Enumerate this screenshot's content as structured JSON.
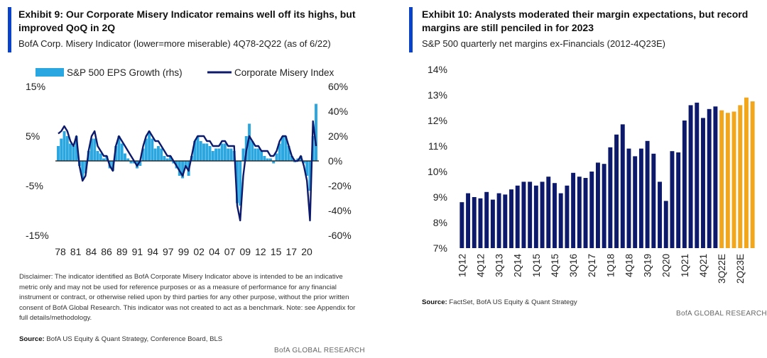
{
  "brand": {
    "name": "BofA GLOBAL RESEARCH",
    "accent": "#0a42c9",
    "navy": "#0d1a6b",
    "light_blue": "#2aa6e0",
    "gold": "#f2a61c"
  },
  "left": {
    "title": "Exhibit 9: Our Corporate Misery Indicator remains well off its highs, but improved QoQ in 2Q",
    "subtitle": "BofA Corp. Misery Indicator (lower=more miserable) 4Q78-2Q22 (as of 6/22)",
    "disclaimer": "Disclaimer: The indicator identified as BofA Corporate Misery Indicator above is intended to be an indicative metric only and may not be used for reference purposes or as a measure of performance for any financial instrument or contract, or otherwise relied upon by third parties for any other purpose, without the prior written consent of BofA Global Research. This indicator was not created to act as a benchmark. Note: see Appendix for full details/methodology.",
    "source_label": "Source:",
    "source_text": "BofA US Equity & Quant Strategy, Conference Board, BLS",
    "credit": "BofA GLOBAL RESEARCH"
  },
  "right": {
    "title": "Exhibit 10: Analysts moderated their margin expectations, but record margins are still penciled in for 2023",
    "subtitle": "S&P 500 quarterly net margins ex-Financials (2012-4Q23E)",
    "source_label": "Source:",
    "source_text": "FactSet, BofA US Equity & Quant Strategy",
    "credit": "BofA GLOBAL RESEARCH"
  },
  "chart_data": [
    {
      "type": "line",
      "title": "Exhibit 9: Our Corporate Misery Indicator remains well off its highs, but improved QoQ in 2Q",
      "legend": [
        "S&P 500 EPS Growth (rhs)",
        "Corporate Misery Index"
      ],
      "x_tick_labels": [
        "78",
        "81",
        "84",
        "86",
        "89",
        "91",
        "94",
        "97",
        "99",
        "02",
        "04",
        "07",
        "09",
        "12",
        "15",
        "17",
        "20"
      ],
      "y_left": {
        "min": -15,
        "max": 15,
        "ticks": [
          15,
          5,
          -5,
          -15
        ],
        "tick_labels": [
          "15%",
          "5%",
          "-5%",
          "-15%"
        ]
      },
      "y_right": {
        "min": -60,
        "max": 60,
        "ticks": [
          60,
          40,
          20,
          0,
          -20,
          -40,
          -60
        ],
        "tick_labels": [
          "60%",
          "40%",
          "20%",
          "0%",
          "-20%",
          "-40%",
          "-60%"
        ]
      },
      "eps_growth_series": {
        "name": "S&P 500 EPS Growth (rhs)",
        "axis": "right",
        "start_year": 1978.75,
        "step": 0.5,
        "values": [
          12,
          18,
          24,
          20,
          14,
          12,
          20,
          -4,
          -14,
          -10,
          8,
          18,
          18,
          8,
          6,
          2,
          4,
          -6,
          -8,
          12,
          20,
          14,
          6,
          2,
          -2,
          -2,
          -6,
          -4,
          10,
          18,
          24,
          18,
          10,
          12,
          10,
          4,
          2,
          4,
          -2,
          -6,
          -12,
          -14,
          -6,
          -12,
          4,
          16,
          20,
          16,
          14,
          14,
          12,
          8,
          10,
          10,
          14,
          14,
          10,
          10,
          8,
          -34,
          -36,
          10,
          20,
          30,
          16,
          10,
          10,
          8,
          4,
          2,
          2,
          -2,
          6,
          14,
          20,
          20,
          12,
          4,
          -1,
          2,
          4,
          -2,
          -12,
          -24,
          20,
          46
        ]
      },
      "misery_index_series": {
        "name": "Corporate Misery Index",
        "axis": "left",
        "start_year": 1978.75,
        "step": 0.5,
        "values": [
          5.5,
          6,
          7,
          6,
          4,
          3,
          5,
          -1,
          -4,
          -3,
          2,
          5,
          6,
          3,
          2,
          1,
          1,
          -1,
          -2,
          3,
          5,
          4,
          3,
          2,
          1,
          0,
          -1,
          0,
          3,
          5,
          6,
          5,
          4,
          4,
          3,
          2,
          1,
          1,
          0,
          -1,
          -2,
          -3,
          -1,
          -2,
          1,
          4,
          5,
          5,
          5,
          4,
          4,
          3,
          3,
          3,
          4,
          4,
          3,
          3,
          3,
          -9,
          -12,
          -3,
          2,
          5,
          4,
          3,
          3,
          2,
          2,
          2,
          1,
          1,
          2,
          4,
          5,
          5,
          3,
          1,
          0,
          0,
          1,
          -1,
          -4,
          -12,
          8,
          3
        ]
      }
    },
    {
      "type": "bar",
      "title": "Exhibit 10: Analysts moderated their margin expectations, but record margins are still penciled in for 2023",
      "ylim": [
        7,
        14
      ],
      "y_ticks": [
        7,
        8,
        9,
        10,
        11,
        12,
        13,
        14
      ],
      "y_tick_labels": [
        "7%",
        "8%",
        "9%",
        "10%",
        "11%",
        "12%",
        "13%",
        "14%"
      ],
      "x_tick_labels": [
        "1Q12",
        "4Q12",
        "3Q13",
        "2Q14",
        "1Q15",
        "4Q15",
        "3Q16",
        "2Q17",
        "1Q18",
        "4Q18",
        "3Q19",
        "2Q20",
        "1Q21",
        "4Q21",
        "3Q22E",
        "2Q23E"
      ],
      "categories": [
        "1Q12",
        "2Q12",
        "3Q12",
        "4Q12",
        "1Q13",
        "2Q13",
        "3Q13",
        "4Q13",
        "1Q14",
        "2Q14",
        "3Q14",
        "4Q14",
        "1Q15",
        "2Q15",
        "3Q15",
        "4Q15",
        "1Q16",
        "2Q16",
        "3Q16",
        "4Q16",
        "1Q17",
        "2Q17",
        "3Q17",
        "4Q17",
        "1Q18",
        "2Q18",
        "3Q18",
        "4Q18",
        "1Q19",
        "2Q19",
        "3Q19",
        "4Q19",
        "1Q20",
        "2Q20",
        "3Q20",
        "4Q20",
        "1Q21",
        "2Q21",
        "3Q21",
        "4Q21",
        "1Q22",
        "2Q22",
        "3Q22E",
        "4Q22E",
        "1Q23E",
        "2Q23E",
        "3Q23E",
        "4Q23E"
      ],
      "values": [
        8.8,
        9.15,
        9.0,
        8.95,
        9.2,
        8.9,
        9.15,
        9.1,
        9.3,
        9.45,
        9.6,
        9.6,
        9.45,
        9.6,
        9.8,
        9.55,
        9.15,
        9.45,
        9.95,
        9.8,
        9.75,
        10.0,
        10.35,
        10.3,
        10.95,
        11.45,
        11.85,
        10.9,
        10.6,
        10.9,
        11.2,
        10.7,
        9.6,
        8.85,
        10.8,
        10.75,
        12.0,
        12.6,
        12.7,
        12.1,
        12.45,
        12.55,
        12.4,
        12.3,
        12.35,
        12.6,
        12.9,
        12.75
      ],
      "forecast_start_index": 42,
      "colors": {
        "actual": "#0d1a6b",
        "forecast": "#f2a61c"
      }
    }
  ]
}
